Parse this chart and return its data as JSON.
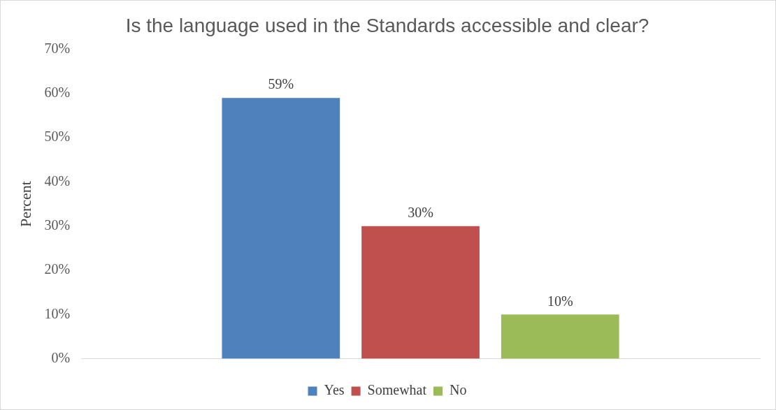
{
  "chart_data": {
    "type": "bar",
    "title": "Is the language used in the Standards accessible and clear?",
    "ylabel": "Percent",
    "categories": [
      null
    ],
    "series": [
      {
        "name": "Yes",
        "color": "#4f81bd",
        "values": [
          59
        ],
        "value_labels": [
          "59%"
        ]
      },
      {
        "name": "Somewhat",
        "color": "#c0504d",
        "values": [
          30
        ],
        "value_labels": [
          "30%"
        ]
      },
      {
        "name": "No",
        "color": "#9bbb59",
        "values": [
          10
        ],
        "value_labels": [
          "10%"
        ]
      }
    ],
    "ylim": [
      0,
      70
    ],
    "yticks": [
      {
        "value": 0,
        "label": "0%"
      },
      {
        "value": 10,
        "label": "10%"
      },
      {
        "value": 20,
        "label": "20%"
      },
      {
        "value": 30,
        "label": "30%"
      },
      {
        "value": 40,
        "label": "40%"
      },
      {
        "value": 50,
        "label": "50%"
      },
      {
        "value": 60,
        "label": "60%"
      },
      {
        "value": 70,
        "label": "70%"
      }
    ],
    "legend": "bottom"
  }
}
